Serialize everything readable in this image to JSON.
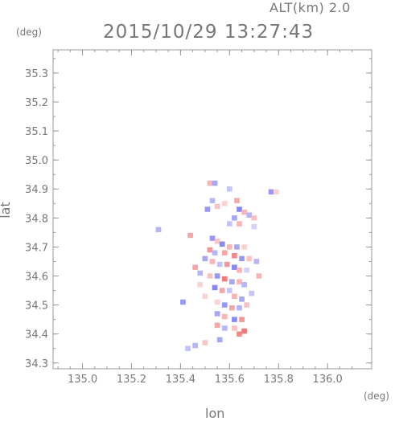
{
  "header": {
    "altitude_label": "ALT(km) 2.0",
    "timestamp": "2015/10/29 13:27:43"
  },
  "chart_data": {
    "type": "heatmap",
    "title": "2015/10/29 13:27:43",
    "xlabel": "lon",
    "ylabel": "lat",
    "x_unit": "(deg)",
    "y_unit": "(deg)",
    "xlim": [
      134.88,
      136.18
    ],
    "ylim": [
      34.28,
      35.38
    ],
    "x_ticks": [
      "135.0",
      "135.2",
      "135.4",
      "135.6",
      "135.8",
      "136.0"
    ],
    "x_tick_values": [
      135.0,
      135.2,
      135.4,
      135.6,
      135.8,
      136.0
    ],
    "y_ticks": [
      "34.3",
      "34.4",
      "34.5",
      "34.6",
      "34.7",
      "34.8",
      "34.9",
      "35.0",
      "35.1",
      "35.2",
      "35.3"
    ],
    "y_tick_values": [
      34.3,
      34.4,
      34.5,
      34.6,
      34.7,
      34.8,
      34.9,
      35.0,
      35.1,
      35.2,
      35.3
    ],
    "colors": {
      "positive": "#f06a6a",
      "negative": "#6a6af0"
    },
    "cells": [
      [
        135.52,
        34.92,
        0.5
      ],
      [
        135.54,
        34.92,
        -0.6
      ],
      [
        135.53,
        34.86,
        -0.5
      ],
      [
        135.55,
        34.84,
        0.4
      ],
      [
        135.51,
        34.83,
        -0.7
      ],
      [
        135.6,
        34.9,
        -0.4
      ],
      [
        135.58,
        34.85,
        0.3
      ],
      [
        135.63,
        34.86,
        0.6
      ],
      [
        135.64,
        34.83,
        -0.8
      ],
      [
        135.66,
        34.82,
        0.5
      ],
      [
        135.62,
        34.8,
        -0.6
      ],
      [
        135.68,
        34.81,
        -0.5
      ],
      [
        135.7,
        34.8,
        0.4
      ],
      [
        135.77,
        34.89,
        -0.7
      ],
      [
        135.79,
        34.89,
        0.3
      ],
      [
        135.64,
        34.78,
        0.5
      ],
      [
        135.6,
        34.78,
        -0.4
      ],
      [
        135.7,
        34.77,
        -0.3
      ],
      [
        135.31,
        34.76,
        -0.5
      ],
      [
        135.44,
        34.74,
        0.6
      ],
      [
        135.53,
        34.73,
        -0.7
      ],
      [
        135.55,
        34.72,
        0.4
      ],
      [
        135.57,
        34.71,
        -0.8
      ],
      [
        135.6,
        34.7,
        0.5
      ],
      [
        135.63,
        34.7,
        -0.6
      ],
      [
        135.66,
        34.7,
        0.3
      ],
      [
        135.52,
        34.69,
        0.7
      ],
      [
        135.54,
        34.68,
        -0.5
      ],
      [
        135.58,
        34.68,
        0.6
      ],
      [
        135.62,
        34.67,
        0.8
      ],
      [
        135.65,
        34.66,
        -0.7
      ],
      [
        135.68,
        34.66,
        0.4
      ],
      [
        135.71,
        34.65,
        -0.5
      ],
      [
        135.5,
        34.66,
        -0.6
      ],
      [
        135.53,
        34.65,
        0.5
      ],
      [
        135.56,
        34.64,
        -0.4
      ],
      [
        135.59,
        34.64,
        0.7
      ],
      [
        135.62,
        34.63,
        -0.8
      ],
      [
        135.64,
        34.62,
        0.5
      ],
      [
        135.67,
        34.62,
        -0.3
      ],
      [
        135.46,
        34.63,
        0.6
      ],
      [
        135.48,
        34.61,
        -0.5
      ],
      [
        135.52,
        34.6,
        0.4
      ],
      [
        135.55,
        34.6,
        -0.7
      ],
      [
        135.58,
        34.59,
        0.9
      ],
      [
        135.61,
        34.58,
        -0.6
      ],
      [
        135.64,
        34.58,
        0.5
      ],
      [
        135.54,
        34.56,
        -0.8
      ],
      [
        135.57,
        34.55,
        0.6
      ],
      [
        135.6,
        34.55,
        -0.4
      ],
      [
        135.62,
        34.53,
        0.5
      ],
      [
        135.65,
        34.52,
        -0.6
      ],
      [
        135.55,
        34.51,
        0.3
      ],
      [
        135.58,
        34.5,
        -0.7
      ],
      [
        135.61,
        34.49,
        0.6
      ],
      [
        135.64,
        34.49,
        -0.5
      ],
      [
        135.67,
        34.5,
        0.4
      ],
      [
        135.55,
        34.47,
        -0.6
      ],
      [
        135.58,
        34.46,
        0.5
      ],
      [
        135.62,
        34.45,
        -0.8
      ],
      [
        135.65,
        34.45,
        0.7
      ],
      [
        135.55,
        34.43,
        0.6
      ],
      [
        135.58,
        34.42,
        -0.5
      ],
      [
        135.62,
        34.42,
        0.4
      ],
      [
        135.66,
        34.41,
        0.9
      ],
      [
        135.64,
        34.4,
        0.8
      ],
      [
        135.56,
        34.38,
        -0.6
      ],
      [
        135.5,
        34.37,
        0.4
      ],
      [
        135.46,
        34.36,
        -0.5
      ],
      [
        135.43,
        34.35,
        -0.4
      ],
      [
        135.41,
        34.51,
        -0.7
      ],
      [
        135.5,
        34.53,
        0.3
      ],
      [
        135.69,
        34.54,
        -0.4
      ],
      [
        135.72,
        34.6,
        0.5
      ],
      [
        135.66,
        34.57,
        -0.5
      ],
      [
        135.48,
        34.57,
        0.3
      ]
    ]
  }
}
